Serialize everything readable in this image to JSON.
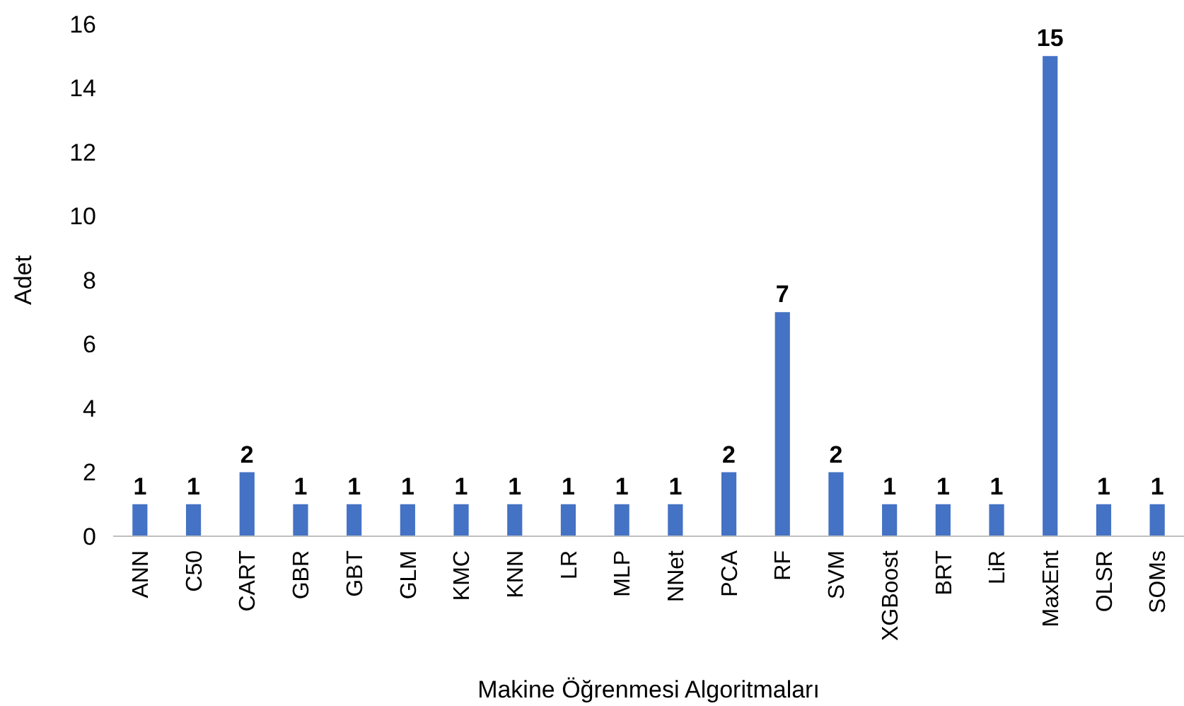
{
  "chart_data": {
    "type": "bar",
    "xlabel": "Makine Öğrenmesi Algoritmaları",
    "ylabel": "Adet",
    "categories": [
      "ANN",
      "C50",
      "CART",
      "GBR",
      "GBT",
      "GLM",
      "KMC",
      "KNN",
      "LR",
      "MLP",
      "NNet",
      "PCA",
      "RF",
      "SVM",
      "XGBoost",
      "BRT",
      "LiR",
      "MaxEnt",
      "OLSR",
      "SOMs"
    ],
    "values": [
      1,
      1,
      2,
      1,
      1,
      1,
      1,
      1,
      1,
      1,
      1,
      2,
      7,
      2,
      1,
      1,
      1,
      15,
      1,
      1
    ],
    "color": "#4472c4",
    "ylim": [
      0,
      16
    ],
    "yticks": [
      0,
      2,
      4,
      6,
      8,
      10,
      12,
      14,
      16
    ],
    "grid": false,
    "data_labels": true
  }
}
